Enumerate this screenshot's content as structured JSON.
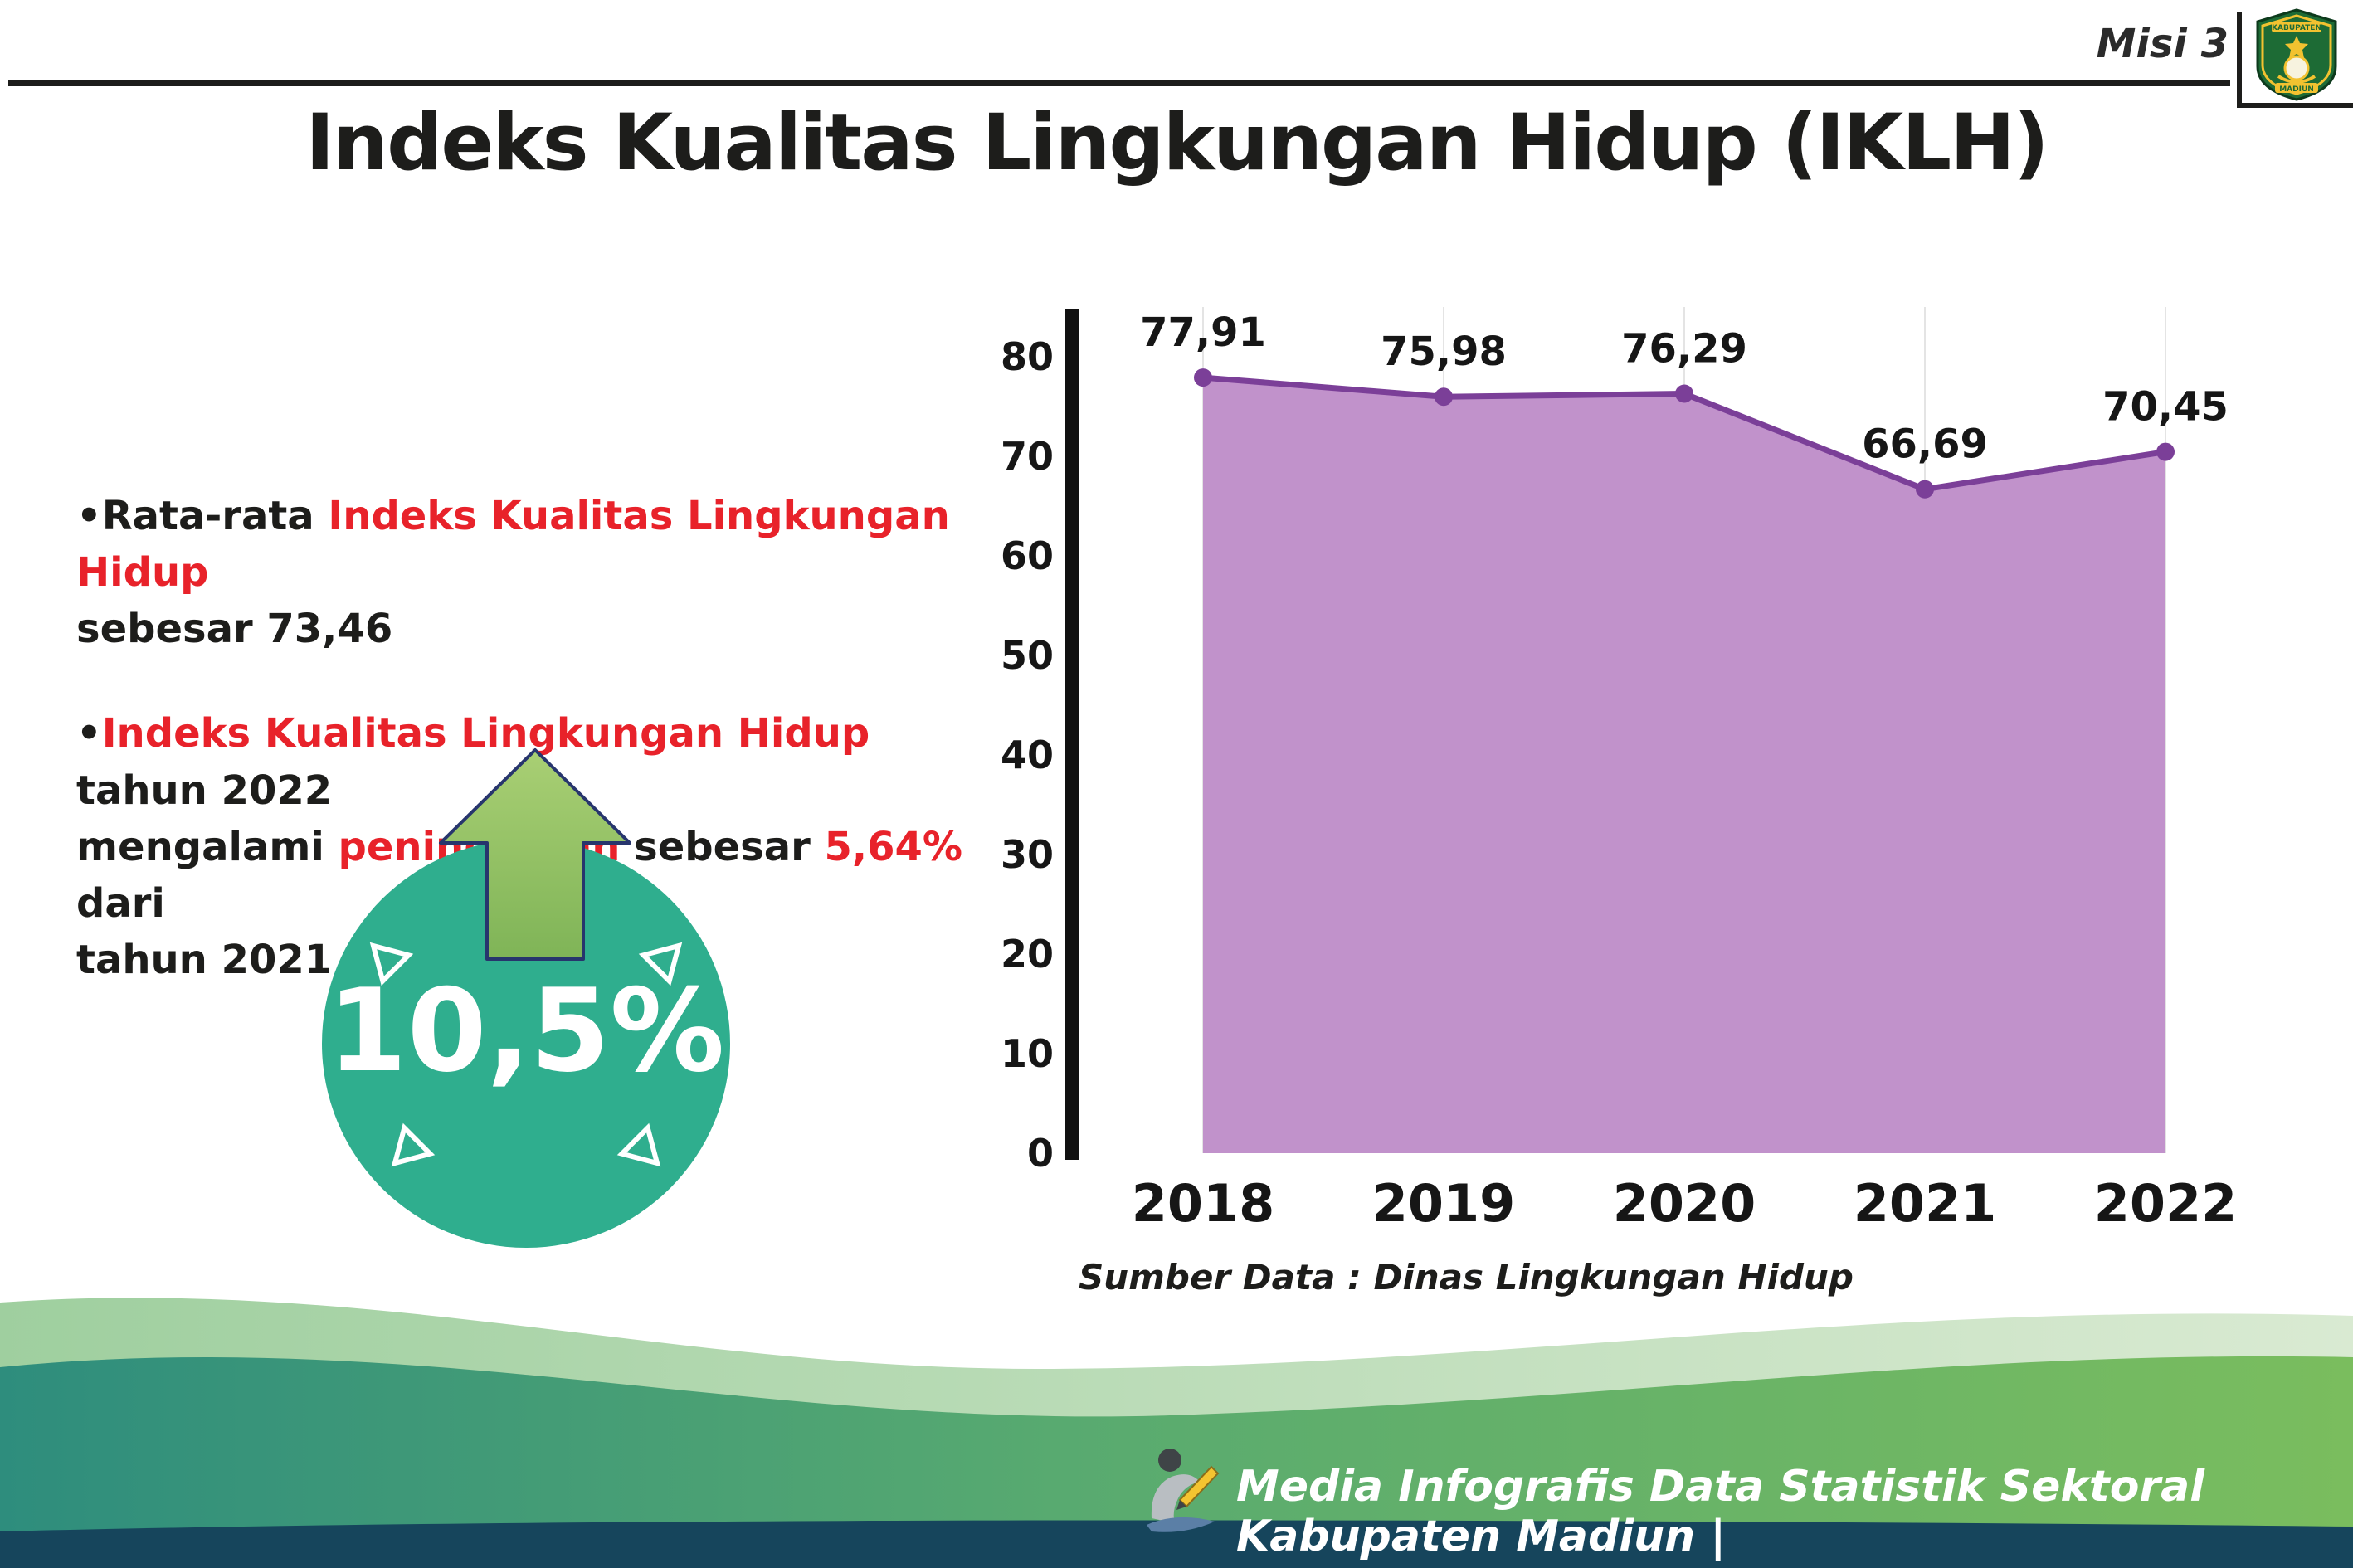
{
  "header": {
    "misi": "Misi 3",
    "title": "Indeks Kualitas Lingkungan Hidup (IKLH)"
  },
  "logo": {
    "top_text": "KABUPATEN",
    "bottom_text": "MADIUN"
  },
  "bullets": {
    "marker": "•",
    "b1": {
      "t1": "Rata-rata ",
      "t2": "Indeks Kualitas Lingkungan Hidup",
      "t3": "sebesar 73,46"
    },
    "b2": {
      "t1": "Indeks Kualitas Lingkungan Hidup",
      "t2": " tahun 2022",
      "t3": "mengalami ",
      "t4": "peningkatan",
      "t5": " sebesar ",
      "t6": "5,64%",
      "t7": " dari",
      "t8": "tahun 2021"
    }
  },
  "badge": {
    "value": "10,5%",
    "circle_color": "#2fae8e",
    "arrow_color": "#97c35e"
  },
  "chart_data": {
    "type": "area",
    "categories": [
      "2018",
      "2019",
      "2020",
      "2021",
      "2022"
    ],
    "values": [
      77.91,
      75.98,
      76.29,
      66.69,
      70.45
    ],
    "value_labels": [
      "77,91",
      "75,98",
      "76,29",
      "66,69",
      "70,45"
    ],
    "title": "",
    "xlabel": "",
    "ylabel": "",
    "ylim": [
      0,
      80
    ],
    "yticks": [
      0,
      10,
      20,
      30,
      40,
      50,
      60,
      70,
      80
    ],
    "grid": "vertical",
    "legend": "none",
    "fill_color": "#c192cb",
    "line_color": "#7b3f98"
  },
  "source": "Sumber Data : Dinas Lingkungan Hidup",
  "footer": {
    "text": "Media Infografis Data Statistik Sektoral Kabupaten Madiun |"
  }
}
